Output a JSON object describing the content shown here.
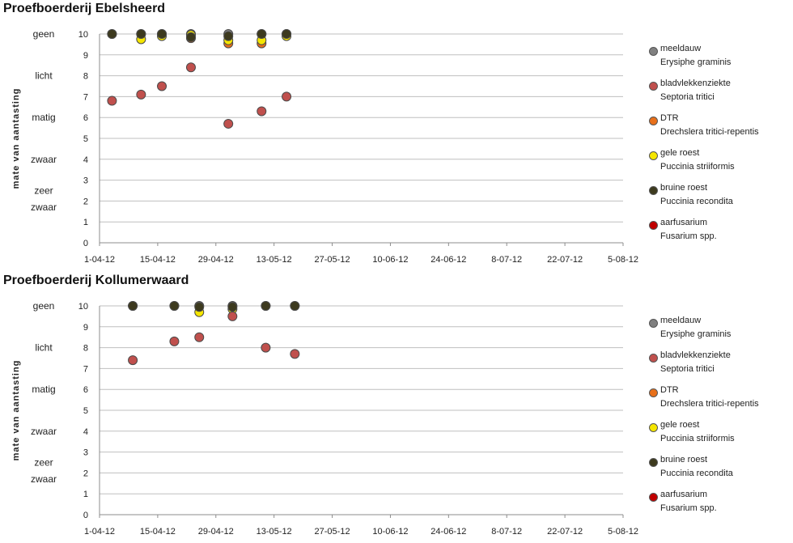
{
  "chart_data": [
    {
      "type": "scatter",
      "title": "Proefboerderij Ebelsheerd",
      "ylabel": "mate van aantasting",
      "xlabel": "",
      "x_tick_labels": [
        "1-04-12",
        "15-04-12",
        "29-04-12",
        "13-05-12",
        "27-05-12",
        "10-06-12",
        "24-06-12",
        "8-07-12",
        "22-07-12",
        "5-08-12"
      ],
      "xlim": [
        "2012-04-01",
        "2012-08-05"
      ],
      "ylim": [
        0,
        10
      ],
      "y_ticks": [
        0,
        1,
        2,
        3,
        4,
        5,
        6,
        7,
        8,
        9,
        10
      ],
      "y_category_labels": [
        {
          "label": "geen",
          "y": 10
        },
        {
          "label": "licht",
          "y": 8
        },
        {
          "label": "matig",
          "y": 6
        },
        {
          "label": "zwaar",
          "y": 4
        },
        {
          "label": "zeer",
          "y": 2.5
        },
        {
          "label": "zwaar",
          "y": 1.7
        }
      ],
      "grid": true,
      "legend_position": "right",
      "series": [
        {
          "name": "meeldauw",
          "latin": "Erysiphe graminis",
          "color": "#808080",
          "points": [
            [
              "2012-04-04",
              10
            ],
            [
              "2012-04-11",
              10
            ],
            [
              "2012-04-16",
              10
            ],
            [
              "2012-04-23",
              10
            ],
            [
              "2012-05-02",
              10
            ],
            [
              "2012-05-10",
              10
            ],
            [
              "2012-05-16",
              10
            ]
          ]
        },
        {
          "name": "DTR",
          "latin": "Drechslera tritici-repentis",
          "color": "#e8701a",
          "points": [
            [
              "2012-04-23",
              9.8
            ],
            [
              "2012-05-02",
              9.55
            ],
            [
              "2012-05-10",
              9.55
            ]
          ]
        },
        {
          "name": "gele roest",
          "latin": "Puccinia striiformis",
          "color": "#f5e600",
          "points": [
            [
              "2012-04-11",
              9.75
            ],
            [
              "2012-04-16",
              9.9
            ],
            [
              "2012-04-23",
              9.95
            ],
            [
              "2012-05-02",
              9.7
            ],
            [
              "2012-05-10",
              9.7
            ],
            [
              "2012-05-16",
              9.9
            ]
          ]
        },
        {
          "name": "bruine roest",
          "latin": "Puccinia recondita",
          "color": "#3d3a1e",
          "points": [
            [
              "2012-04-04",
              10
            ],
            [
              "2012-04-11",
              10
            ],
            [
              "2012-04-16",
              10
            ],
            [
              "2012-04-23",
              9.85
            ],
            [
              "2012-05-02",
              9.9
            ],
            [
              "2012-05-10",
              10
            ],
            [
              "2012-05-16",
              10
            ]
          ]
        },
        {
          "name": "bladvlekkenziekte",
          "latin": "Septoria tritici",
          "color": "#c0504d",
          "points": [
            [
              "2012-04-04",
              6.8
            ],
            [
              "2012-04-11",
              7.1
            ],
            [
              "2012-04-16",
              7.5
            ],
            [
              "2012-04-23",
              8.4
            ],
            [
              "2012-05-02",
              5.7
            ],
            [
              "2012-05-10",
              6.3
            ],
            [
              "2012-05-16",
              7.0
            ]
          ]
        },
        {
          "name": "aarfusarium",
          "latin": "Fusarium spp.",
          "color": "#c00000",
          "points": []
        }
      ]
    },
    {
      "type": "scatter",
      "title": "Proefboerderij Kollumerwaard",
      "ylabel": "mate van aantasting",
      "xlabel": "",
      "x_tick_labels": [
        "1-04-12",
        "15-04-12",
        "29-04-12",
        "13-05-12",
        "27-05-12",
        "10-06-12",
        "24-06-12",
        "8-07-12",
        "22-07-12",
        "5-08-12"
      ],
      "xlim": [
        "2012-04-01",
        "2012-08-05"
      ],
      "ylim": [
        0,
        10
      ],
      "y_ticks": [
        0,
        1,
        2,
        3,
        4,
        5,
        6,
        7,
        8,
        9,
        10
      ],
      "y_category_labels": [
        {
          "label": "geen",
          "y": 10
        },
        {
          "label": "licht",
          "y": 8
        },
        {
          "label": "matig",
          "y": 6
        },
        {
          "label": "zwaar",
          "y": 4
        },
        {
          "label": "zeer",
          "y": 2.5
        },
        {
          "label": "zwaar",
          "y": 1.7
        }
      ],
      "grid": true,
      "legend_position": "right",
      "series": [
        {
          "name": "meeldauw",
          "latin": "Erysiphe graminis",
          "color": "#808080",
          "points": [
            [
              "2012-04-09",
              10
            ],
            [
              "2012-04-19",
              10
            ],
            [
              "2012-04-25",
              10
            ],
            [
              "2012-05-03",
              10
            ],
            [
              "2012-05-11",
              10
            ],
            [
              "2012-05-18",
              10
            ]
          ]
        },
        {
          "name": "DTR",
          "latin": "Drechslera tritici-repentis",
          "color": "#e8701a",
          "points": []
        },
        {
          "name": "gele roest",
          "latin": "Puccinia striiformis",
          "color": "#f5e600",
          "points": [
            [
              "2012-04-25",
              9.7
            ],
            [
              "2012-05-03",
              9.85
            ]
          ]
        },
        {
          "name": "bruine roest",
          "latin": "Puccinia recondita",
          "color": "#3d3a1e",
          "points": [
            [
              "2012-04-09",
              10
            ],
            [
              "2012-04-19",
              10
            ],
            [
              "2012-04-25",
              9.95
            ],
            [
              "2012-05-03",
              9.95
            ],
            [
              "2012-05-11",
              10
            ],
            [
              "2012-05-18",
              10
            ]
          ]
        },
        {
          "name": "bladvlekkenziekte",
          "latin": "Septoria tritici",
          "color": "#c0504d",
          "points": [
            [
              "2012-04-09",
              7.4
            ],
            [
              "2012-04-19",
              8.3
            ],
            [
              "2012-04-25",
              8.5
            ],
            [
              "2012-05-03",
              9.5
            ],
            [
              "2012-05-11",
              8.0
            ],
            [
              "2012-05-18",
              7.7
            ]
          ]
        },
        {
          "name": "aarfusarium",
          "latin": "Fusarium spp.",
          "color": "#c00000",
          "points": []
        }
      ]
    }
  ],
  "legend_items": [
    {
      "name": "meeldauw",
      "latin": "Erysiphe graminis",
      "color": "#808080"
    },
    {
      "name": "bladvlekkenziekte",
      "latin": "Septoria tritici",
      "color": "#c0504d"
    },
    {
      "name": "DTR",
      "latin": "Drechslera tritici-repentis",
      "color": "#e8701a"
    },
    {
      "name": "gele roest",
      "latin": "Puccinia striiformis",
      "color": "#f5e600"
    },
    {
      "name": "bruine roest",
      "latin": "Puccinia recondita",
      "color": "#3d3a1e"
    },
    {
      "name": "aarfusarium",
      "latin": "Fusarium spp.",
      "color": "#c00000"
    }
  ]
}
